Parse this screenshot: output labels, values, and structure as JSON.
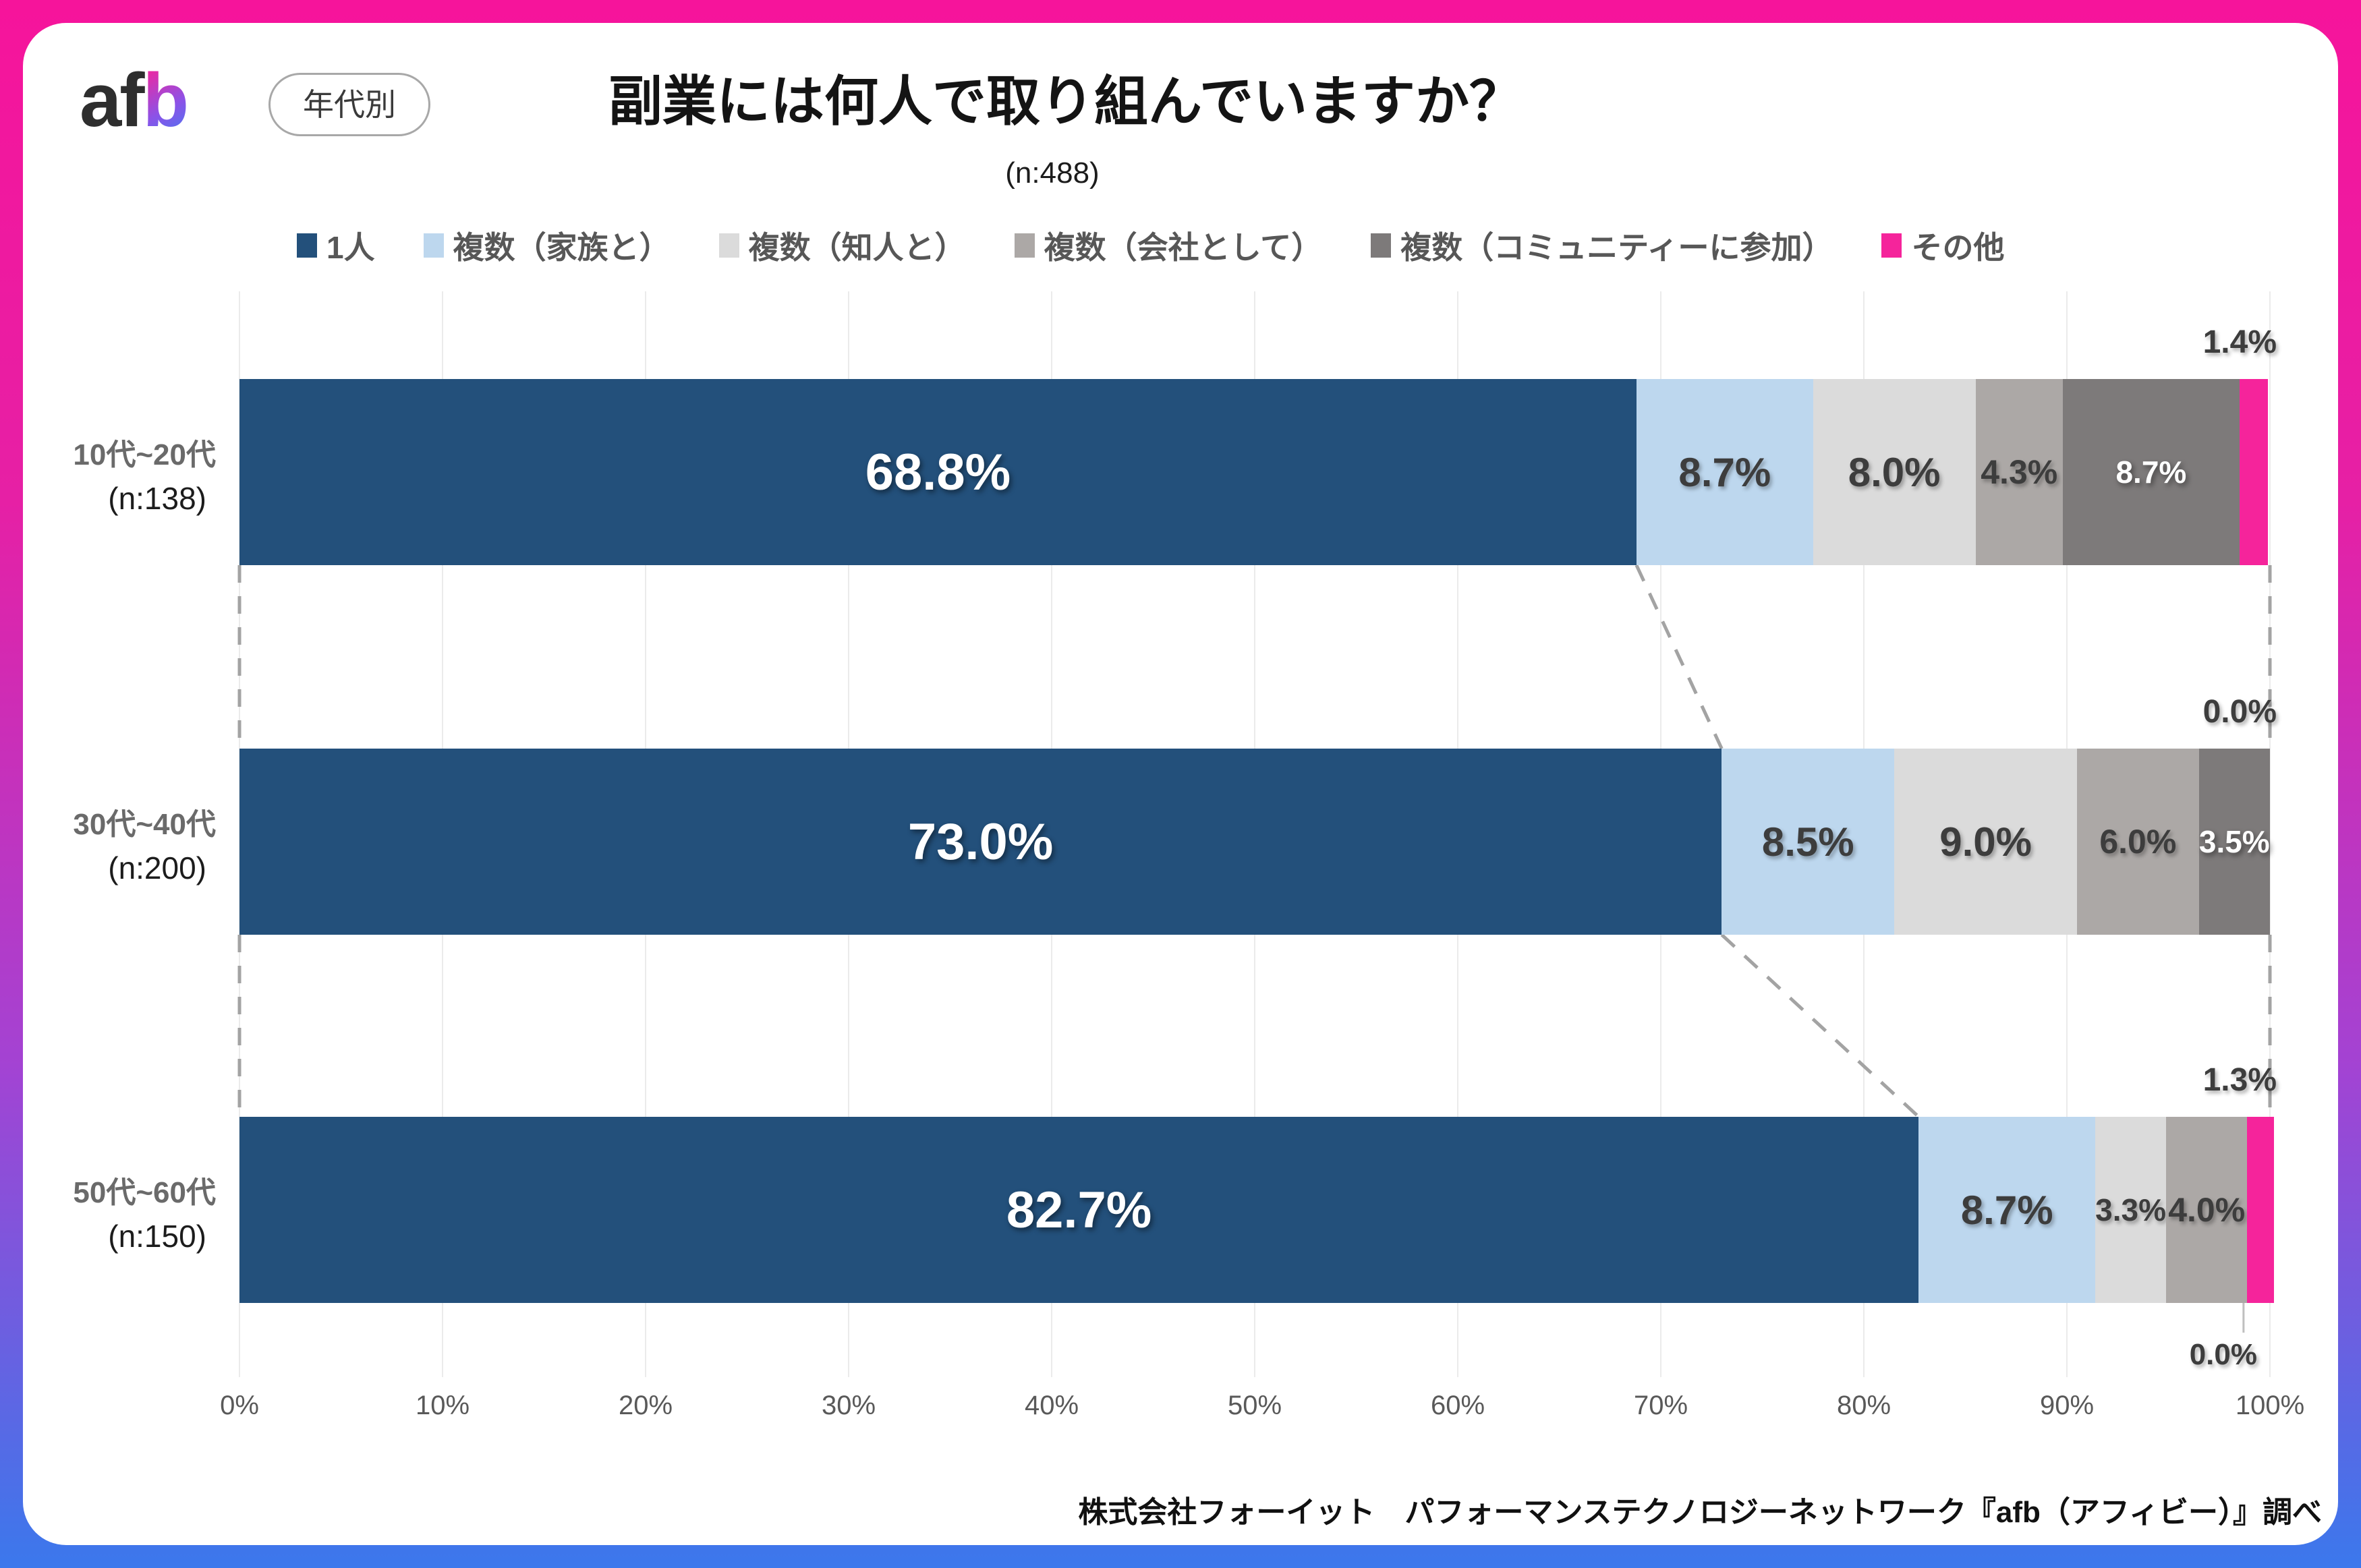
{
  "header": {
    "logo_black": "af",
    "logo_accent": "b",
    "badge": "年代別"
  },
  "chart_data": {
    "type": "bar",
    "stacked": true,
    "orientation": "horizontal",
    "title": "副業には何人で取り組んでいますか？",
    "subtitle": "(n:488)",
    "legend_position": "top",
    "x_axis": {
      "min": 0,
      "max": 100,
      "ticks": [
        "0%",
        "10%",
        "20%",
        "30%",
        "40%",
        "50%",
        "60%",
        "70%",
        "80%",
        "90%",
        "100%"
      ],
      "grid": true
    },
    "categories": [
      {
        "label": "10代~20代",
        "n": "(n:138)"
      },
      {
        "label": "30代~40代",
        "n": "(n:200)"
      },
      {
        "label": "50代~60代",
        "n": "(n:150)"
      }
    ],
    "series": [
      {
        "name": "1人",
        "color": "#23507B",
        "values": [
          68.8,
          73.0,
          82.7
        ]
      },
      {
        "name": "複数（家族と）",
        "color": "#BDD7EE",
        "values": [
          8.7,
          8.5,
          8.7
        ]
      },
      {
        "name": "複数（知人と）",
        "color": "#DBDBDB",
        "values": [
          8.0,
          9.0,
          3.3
        ]
      },
      {
        "name": "複数（会社として）",
        "color": "#ACA8A6",
        "values": [
          4.3,
          6.0,
          4.0
        ]
      },
      {
        "name": "複数（コミュニティーに参加）",
        "color": "#7D7A7A",
        "values": [
          8.7,
          3.5,
          0.0
        ]
      },
      {
        "name": "その他",
        "color": "#F5249B",
        "values": [
          1.4,
          0.0,
          1.3
        ]
      }
    ]
  },
  "footer": {
    "source": "株式会社フォーイット　パフォーマンステクノロジーネットワーク『afb（アフィビー）』調べ"
  }
}
